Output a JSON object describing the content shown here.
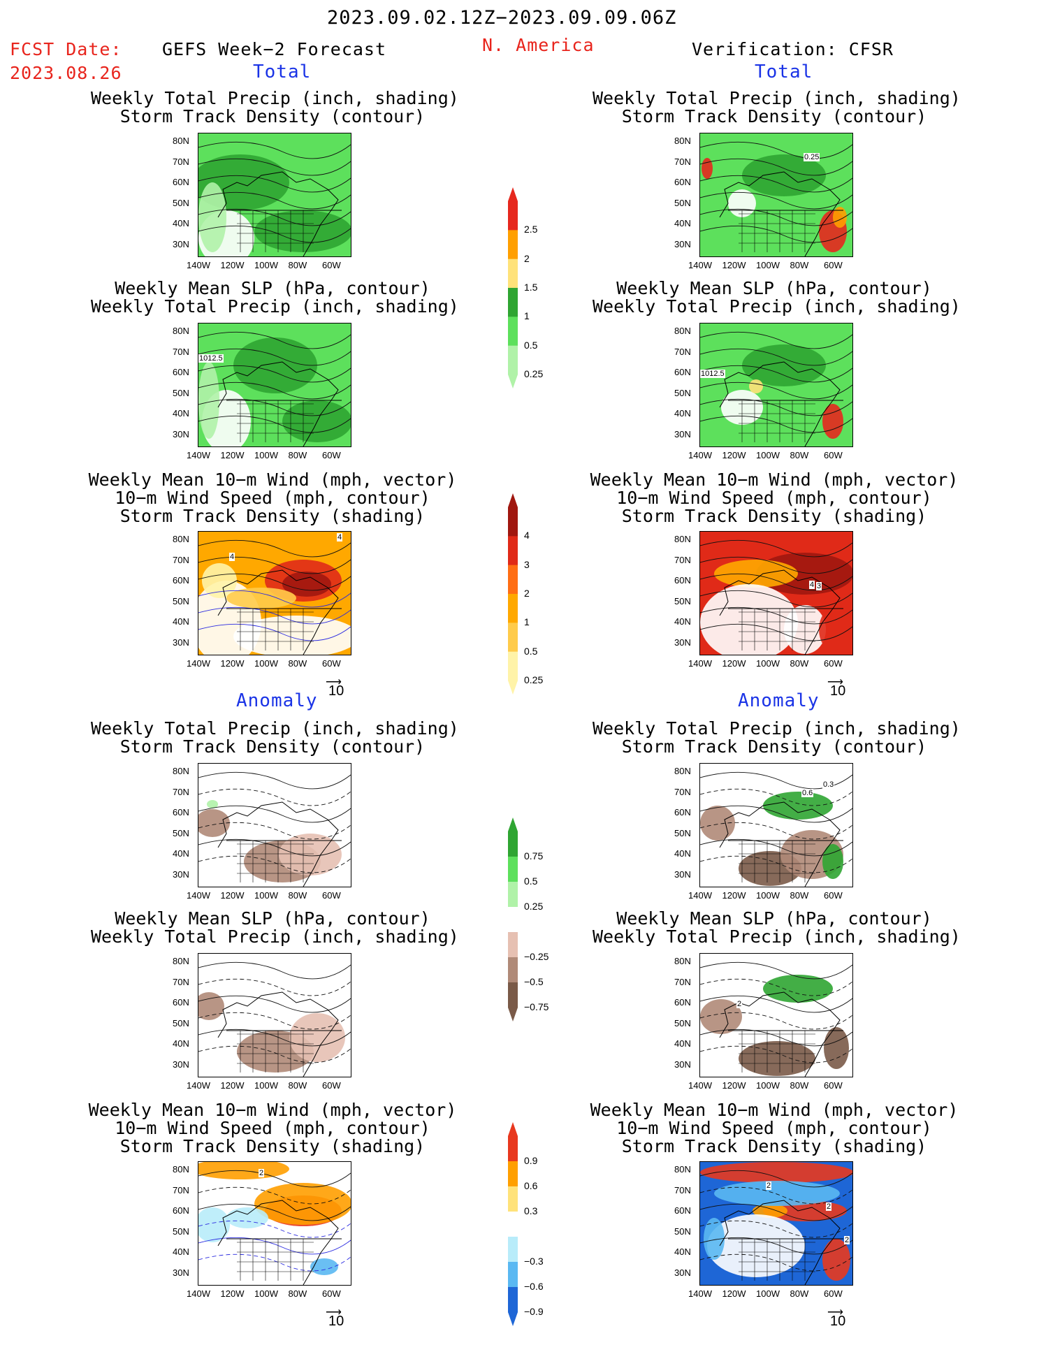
{
  "header": {
    "date_range": "2023.09.02.12Z−2023.09.09.06Z",
    "fcst_label": "FCST Date:",
    "fcst_date": "2023.08.26",
    "left_title": "GEFS Week−2 Forecast",
    "region": "N. America",
    "right_title": "Verification: CFSR",
    "total_label": "Total",
    "anomaly_label": "Anomaly"
  },
  "titles": {
    "precip_track": [
      "Weekly Total Precip (inch, shading)",
      "Storm Track Density (contour)"
    ],
    "slp_precip": [
      "Weekly Mean SLP (hPa, contour)",
      "Weekly Total Precip (inch, shading)"
    ],
    "wind_track": [
      "Weekly Mean 10−m Wind (mph, vector)",
      "10−m Wind Speed (mph, contour)",
      "Storm Track Density (shading)"
    ]
  },
  "axes": {
    "lat_ticks": [
      "80N",
      "70N",
      "60N",
      "50N",
      "40N",
      "30N"
    ],
    "lon_ticks": [
      "140W",
      "120W",
      "100W",
      "80W",
      "60W"
    ]
  },
  "vector_ref": "10",
  "colorbars": [
    {
      "name": "precip-total",
      "labels": [
        "2.5",
        "2",
        "1.5",
        "1",
        "0.5",
        "0.25"
      ],
      "colors": [
        "#e6281e",
        "#ff9f00",
        "#ffe27a",
        "#2fa532",
        "#5de05c",
        "#b0f2a8"
      ]
    },
    {
      "name": "track-total",
      "labels": [
        "4",
        "3",
        "2",
        "1",
        "0.5",
        "0.25"
      ],
      "colors": [
        "#a0170f",
        "#e02a18",
        "#ff6e14",
        "#ffa800",
        "#ffcb4a",
        "#fff3a8"
      ]
    },
    {
      "name": "precip-anom",
      "labels": [
        "0.75",
        "0.5",
        "0.25",
        "−0.25",
        "−0.5",
        "−0.75"
      ],
      "colors": [
        "#2fa532",
        "#5de05c",
        "#b0f2a8",
        "#ffffff",
        "#e6c0b2",
        "#b08a78",
        "#7a5a48"
      ]
    },
    {
      "name": "track-anom",
      "labels": [
        "0.9",
        "0.6",
        "0.3",
        "−0.3",
        "−0.6",
        "−0.9"
      ],
      "colors": [
        "#e8381e",
        "#ff9f00",
        "#ffe27a",
        "#ffffff",
        "#b8ecfa",
        "#5ab8f2",
        "#1e66d6"
      ]
    }
  ],
  "map_annotations": {
    "r1_right": "0.25",
    "r2_left": "1012.5",
    "r2_right": "1012.5",
    "r3_left": [
      "4",
      "4"
    ],
    "r3_right": [
      "4",
      "3"
    ],
    "r4_right": [
      "0.6",
      "0.3"
    ],
    "r5_right": "2",
    "r6_left": "2",
    "r6_right": [
      "2",
      "2",
      "2"
    ]
  }
}
